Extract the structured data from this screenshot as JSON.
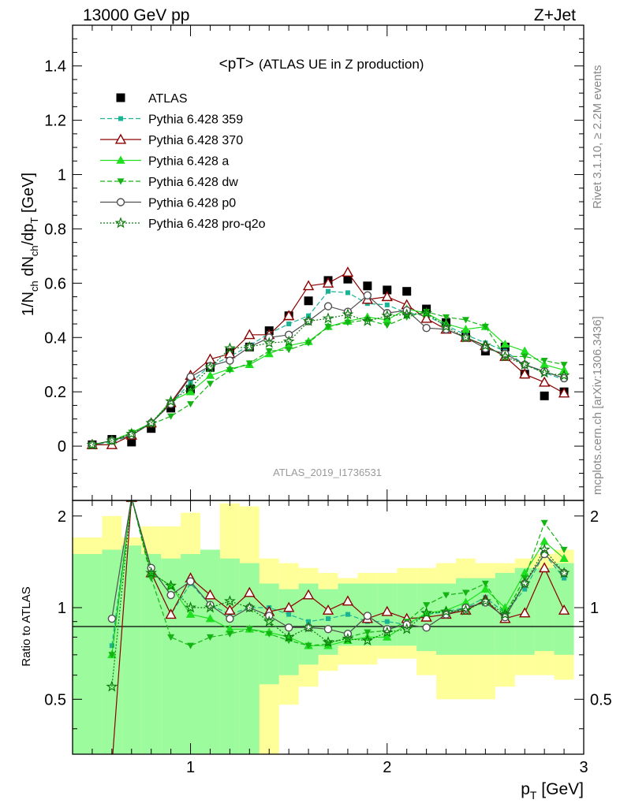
{
  "header": {
    "energy": "13000 GeV pp",
    "process": "Z+Jet"
  },
  "side_labels": {
    "rivet": "Rivet 3.1.10, ≥ 2.2M events",
    "mcplots": "mcplots.cern.ch [arXiv:1306.3436]"
  },
  "colors": {
    "ATLAS": "#000000",
    "Pythia 6.428 359": "#1ab393",
    "Pythia 6.428 370": "#8b0000",
    "Pythia 6.428 a": "#1ee01e",
    "Pythia 6.428 dw": "#14b414",
    "Pythia 6.428 p0": "#505050",
    "Pythia 6.428 pro-q2o": "#0a7a0a",
    "band_inner": "#9cfb9c",
    "band_outer": "#ffff99"
  },
  "chart_data": [
    {
      "type": "line",
      "title": "<pT>",
      "title_suffix": "(ATLAS UE in Z production)",
      "ylabel": "1/N_ch dN_ch/dp_T [GeV]",
      "analysis_label": "ATLAS_2019_I1736531",
      "xlim": [
        0.4,
        3.0
      ],
      "ylim": [
        -0.2,
        1.55
      ],
      "yticks": [
        0,
        0.2,
        0.4,
        0.6,
        0.8,
        1,
        1.2,
        1.4
      ],
      "ytick_labels": [
        "0",
        "0.2",
        "0.4",
        "0.6",
        "0.8",
        "1",
        "1.2",
        "1.4"
      ],
      "legend_position": "top-left",
      "x": [
        0.5,
        0.6,
        0.7,
        0.8,
        0.9,
        1.0,
        1.1,
        1.2,
        1.3,
        1.4,
        1.5,
        1.6,
        1.7,
        1.8,
        1.9,
        2.0,
        2.1,
        2.2,
        2.3,
        2.4,
        2.5,
        2.6,
        2.7,
        2.8,
        2.9
      ],
      "series": [
        {
          "name": "ATLAS",
          "marker": "square",
          "style": "none",
          "values": [
            0.005,
            0.025,
            0.015,
            0.065,
            0.14,
            0.21,
            0.29,
            0.345,
            0.365,
            0.425,
            0.48,
            0.535,
            0.61,
            0.615,
            0.59,
            0.575,
            0.57,
            0.505,
            0.455,
            0.41,
            0.35,
            0.365,
            0.265,
            0.185,
            0.2
          ]
        },
        {
          "name": "Pythia 6.428 359",
          "marker": "square-small",
          "style": "dashed",
          "values": [
            0.005,
            0.015,
            0.04,
            0.085,
            0.155,
            0.235,
            0.295,
            0.33,
            0.37,
            0.415,
            0.45,
            0.48,
            0.57,
            0.565,
            0.525,
            0.52,
            0.49,
            0.48,
            0.445,
            0.41,
            0.38,
            0.35,
            0.3,
            0.27,
            0.245
          ]
        },
        {
          "name": "Pythia 6.428 370",
          "marker": "triangle-open",
          "style": "solid",
          "values": [
            0.005,
            0.005,
            0.04,
            0.085,
            0.16,
            0.26,
            0.32,
            0.34,
            0.41,
            0.41,
            0.48,
            0.59,
            0.6,
            0.64,
            0.54,
            0.55,
            0.52,
            0.47,
            0.43,
            0.4,
            0.37,
            0.33,
            0.265,
            0.235,
            0.195
          ]
        },
        {
          "name": "Pythia 6.428 a",
          "marker": "triangle",
          "style": "solid",
          "values": [
            0.005,
            0.02,
            0.05,
            0.085,
            0.165,
            0.2,
            0.26,
            0.285,
            0.3,
            0.34,
            0.37,
            0.385,
            0.44,
            0.46,
            0.475,
            0.465,
            0.505,
            0.49,
            0.45,
            0.43,
            0.44,
            0.375,
            0.35,
            0.3,
            0.28
          ]
        },
        {
          "name": "Pythia 6.428 dw",
          "marker": "triangle-down",
          "style": "dashed",
          "values": [
            0.005,
            0.02,
            0.05,
            0.08,
            0.11,
            0.155,
            0.23,
            0.28,
            0.305,
            0.35,
            0.355,
            0.38,
            0.44,
            0.455,
            0.465,
            0.445,
            0.475,
            0.495,
            0.475,
            0.465,
            0.44,
            0.33,
            0.33,
            0.315,
            0.3
          ]
        },
        {
          "name": "Pythia 6.428 p0",
          "marker": "circle-open",
          "style": "solid",
          "values": [
            0.005,
            0.02,
            0.04,
            0.085,
            0.155,
            0.255,
            0.295,
            0.315,
            0.365,
            0.4,
            0.41,
            0.46,
            0.515,
            0.495,
            0.555,
            0.49,
            0.5,
            0.435,
            0.43,
            0.4,
            0.36,
            0.34,
            0.3,
            0.275,
            0.25
          ]
        },
        {
          "name": "Pythia 6.428 pro-q2o",
          "marker": "star-open",
          "style": "dotted",
          "values": [
            0.005,
            0.02,
            0.045,
            0.085,
            0.165,
            0.215,
            0.29,
            0.36,
            0.365,
            0.38,
            0.385,
            0.46,
            0.47,
            0.485,
            0.46,
            0.48,
            0.485,
            0.49,
            0.44,
            0.4,
            0.37,
            0.33,
            0.3,
            0.27,
            0.26
          ]
        }
      ]
    },
    {
      "type": "line",
      "ylabel": "Ratio to ATLAS",
      "xlabel": "p_T [GeV]",
      "xlim": [
        0.4,
        3.0
      ],
      "ylim": [
        0.33,
        2.25
      ],
      "yscale": "log",
      "xticks": [
        1,
        2,
        3
      ],
      "xtick_labels": [
        "1",
        "2",
        "3"
      ],
      "yticks": [
        0.5,
        1,
        2
      ],
      "ytick_labels": [
        "0.5",
        "1",
        "2"
      ],
      "band_edges": [
        0.4,
        0.55,
        0.65,
        0.75,
        0.85,
        0.95,
        1.05,
        1.15,
        1.25,
        1.35,
        1.45,
        1.55,
        1.65,
        1.75,
        1.85,
        1.95,
        2.05,
        2.15,
        2.25,
        2.35,
        2.45,
        2.55,
        2.65,
        2.75,
        2.85,
        2.95
      ],
      "band_outer": [
        [
          0.33,
          1.7
        ],
        [
          0.33,
          2.0
        ],
        [
          0.33,
          1.7
        ],
        [
          0.33,
          1.85
        ],
        [
          0.33,
          1.85
        ],
        [
          0.33,
          2.05
        ],
        [
          0.33,
          1.45
        ],
        [
          0.33,
          2.2
        ],
        [
          0.33,
          2.15
        ],
        [
          0.33,
          1.45
        ],
        [
          0.48,
          1.4
        ],
        [
          0.55,
          1.35
        ],
        [
          0.62,
          1.3
        ],
        [
          0.65,
          1.25
        ],
        [
          0.65,
          1.3
        ],
        [
          0.68,
          1.3
        ],
        [
          0.68,
          1.35
        ],
        [
          0.6,
          1.35
        ],
        [
          0.5,
          1.4
        ],
        [
          0.5,
          1.45
        ],
        [
          0.5,
          1.4
        ],
        [
          0.55,
          1.4
        ],
        [
          0.6,
          1.45
        ],
        [
          0.6,
          1.5
        ],
        [
          0.58,
          1.55
        ]
      ],
      "band_inner": [
        [
          0.33,
          1.5
        ],
        [
          0.33,
          1.55
        ],
        [
          0.33,
          1.6
        ],
        [
          0.33,
          1.5
        ],
        [
          0.33,
          1.45
        ],
        [
          0.33,
          1.5
        ],
        [
          0.33,
          1.55
        ],
        [
          0.33,
          1.45
        ],
        [
          0.33,
          1.4
        ],
        [
          0.56,
          1.2
        ],
        [
          0.6,
          1.15
        ],
        [
          0.65,
          1.2
        ],
        [
          0.7,
          1.15
        ],
        [
          0.75,
          1.2
        ],
        [
          0.75,
          1.2
        ],
        [
          0.75,
          1.2
        ],
        [
          0.75,
          1.2
        ],
        [
          0.72,
          1.2
        ],
        [
          0.7,
          1.2
        ],
        [
          0.7,
          1.25
        ],
        [
          0.7,
          1.25
        ],
        [
          0.7,
          1.3
        ],
        [
          0.7,
          1.35
        ],
        [
          0.72,
          1.35
        ],
        [
          0.7,
          1.4
        ]
      ],
      "x": [
        0.6,
        0.7,
        0.8,
        0.9,
        1.0,
        1.1,
        1.2,
        1.3,
        1.4,
        1.5,
        1.6,
        1.7,
        1.8,
        1.9,
        2.0,
        2.1,
        2.2,
        2.3,
        2.4,
        2.5,
        2.6,
        2.7,
        2.8,
        2.9
      ],
      "series": [
        {
          "name": "Pythia 6.428 359",
          "values": [
            0.75,
            2.3,
            1.3,
            0.95,
            1.2,
            1.02,
            0.95,
            1.0,
            1.0,
            0.95,
            0.9,
            0.92,
            0.95,
            0.9,
            0.9,
            0.88,
            0.95,
            0.97,
            1.0,
            1.08,
            0.96,
            1.15,
            1.5,
            1.25
          ]
        },
        {
          "name": "Pythia 6.428 370",
          "values": [
            0.3,
            2.3,
            1.3,
            0.95,
            1.25,
            1.1,
            0.98,
            1.12,
            0.97,
            1.0,
            1.1,
            0.98,
            1.05,
            0.92,
            0.97,
            0.92,
            0.93,
            0.95,
            0.98,
            1.06,
            0.92,
            0.96,
            1.35,
            0.98
          ]
        },
        {
          "name": "Pythia 6.428 a",
          "values": [
            0.7,
            2.3,
            1.3,
            1.18,
            0.95,
            0.92,
            0.85,
            0.85,
            0.83,
            0.8,
            0.75,
            0.75,
            0.78,
            0.8,
            0.8,
            0.88,
            0.96,
            0.98,
            1.04,
            1.15,
            1.0,
            1.3,
            1.65,
            1.45
          ]
        },
        {
          "name": "Pythia 6.428 dw",
          "values": [
            0.7,
            2.3,
            1.25,
            0.8,
            0.75,
            0.8,
            0.82,
            0.85,
            0.82,
            0.78,
            0.75,
            0.76,
            0.8,
            0.83,
            0.84,
            0.9,
            1.02,
            1.1,
            1.12,
            1.2,
            0.95,
            1.25,
            1.9,
            1.55
          ]
        },
        {
          "name": "Pythia 6.428 p0",
          "values": [
            0.92,
            2.3,
            1.35,
            1.1,
            1.22,
            1.02,
            0.92,
            1.0,
            0.94,
            0.86,
            0.86,
            0.85,
            0.82,
            0.94,
            0.85,
            0.88,
            0.86,
            0.95,
            1.0,
            1.04,
            0.93,
            1.2,
            1.5,
            1.3
          ]
        },
        {
          "name": "Pythia 6.428 pro-q2o",
          "values": [
            0.55,
            2.3,
            1.3,
            1.18,
            1.0,
            1.0,
            1.05,
            1.0,
            0.9,
            0.8,
            0.86,
            0.77,
            0.79,
            0.78,
            0.83,
            0.85,
            0.96,
            0.97,
            0.98,
            1.05,
            0.95,
            1.2,
            1.55,
            1.3
          ]
        }
      ]
    }
  ]
}
